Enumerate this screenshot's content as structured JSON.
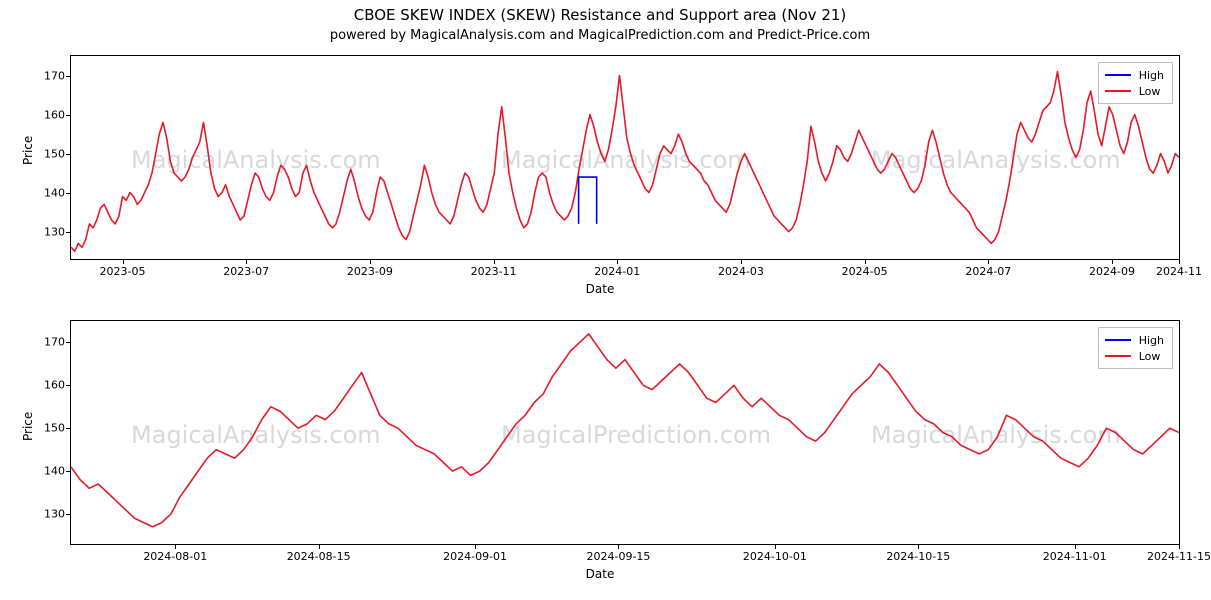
{
  "title": "CBOE SKEW INDEX (SKEW) Resistance and Support area (Nov 21)",
  "subtitle": "powered by MagicalAnalysis.com and MagicalPrediction.com and Predict-Price.com",
  "watermark_texts": [
    "MagicalAnalysis.com",
    "MagicalPrediction.com"
  ],
  "legend": {
    "items": [
      {
        "label": "High",
        "color": "#0000ff"
      },
      {
        "label": "Low",
        "color": "#e6192a"
      }
    ],
    "border_color": "#bfbfbf",
    "background": "#ffffff",
    "fontsize": 11
  },
  "style": {
    "axis_color": "#000000",
    "background": "#ffffff",
    "line_width": 1.6,
    "title_fontsize": 15,
    "subtitle_fontsize": 13,
    "tick_fontsize": 11,
    "label_fontsize": 12,
    "watermark_color": "#d9d9d9",
    "watermark_fontsize": 24
  },
  "top_chart": {
    "type": "line",
    "ylabel": "Price",
    "xlabel": "Date",
    "ylim": [
      123,
      175
    ],
    "yticks": [
      130,
      140,
      150,
      160,
      170
    ],
    "xlim": [
      0,
      430
    ],
    "xticks": [
      {
        "pos": 20,
        "label": "2023-05"
      },
      {
        "pos": 68,
        "label": "2023-07"
      },
      {
        "pos": 116,
        "label": "2023-09"
      },
      {
        "pos": 164,
        "label": "2023-11"
      },
      {
        "pos": 212,
        "label": "2024-01"
      },
      {
        "pos": 260,
        "label": "2024-03"
      },
      {
        "pos": 308,
        "label": "2024-05"
      },
      {
        "pos": 356,
        "label": "2024-07"
      },
      {
        "pos": 404,
        "label": "2024-09"
      },
      {
        "pos": 430,
        "label": "2024-11"
      }
    ],
    "series": [
      {
        "name": "Low",
        "color": "#e6192a",
        "y": [
          126,
          125,
          127,
          126,
          128,
          132,
          131,
          133,
          136,
          137,
          135,
          133,
          132,
          134,
          139,
          138,
          140,
          139,
          137,
          138,
          140,
          142,
          145,
          150,
          155,
          158,
          154,
          148,
          145,
          144,
          143,
          144,
          146,
          149,
          151,
          153,
          158,
          152,
          145,
          141,
          139,
          140,
          142,
          139,
          137,
          135,
          133,
          134,
          138,
          142,
          145,
          144,
          141,
          139,
          138,
          140,
          144,
          147,
          146,
          144,
          141,
          139,
          140,
          145,
          147,
          143,
          140,
          138,
          136,
          134,
          132,
          131,
          132,
          135,
          139,
          143,
          146,
          143,
          139,
          136,
          134,
          133,
          135,
          140,
          144,
          143,
          140,
          137,
          134,
          131,
          129,
          128,
          130,
          134,
          138,
          142,
          147,
          144,
          140,
          137,
          135,
          134,
          133,
          132,
          134,
          138,
          142,
          145,
          144,
          141,
          138,
          136,
          135,
          137,
          141,
          145,
          155,
          162,
          154,
          145,
          140,
          136,
          133,
          131,
          132,
          135,
          140,
          144,
          145,
          144,
          140,
          137,
          135,
          134,
          133,
          134,
          136,
          140,
          146,
          151,
          156,
          160,
          157,
          153,
          150,
          148,
          151,
          156,
          162,
          170,
          162,
          154,
          150,
          147,
          145,
          143,
          141,
          140,
          142,
          146,
          150,
          152,
          151,
          150,
          152,
          155,
          153,
          150,
          148,
          147,
          146,
          145,
          143,
          142,
          140,
          138,
          137,
          136,
          135,
          137,
          141,
          145,
          148,
          150,
          148,
          146,
          144,
          142,
          140,
          138,
          136,
          134,
          133,
          132,
          131,
          130,
          131,
          133,
          137,
          142,
          148,
          157,
          153,
          148,
          145,
          143,
          145,
          148,
          152,
          151,
          149,
          148,
          150,
          153,
          156,
          154,
          152,
          150,
          148,
          146,
          145,
          146,
          148,
          150,
          149,
          147,
          145,
          143,
          141,
          140,
          141,
          143,
          147,
          153,
          156,
          153,
          149,
          145,
          142,
          140,
          139,
          138,
          137,
          136,
          135,
          133,
          131,
          130,
          129,
          128,
          127,
          128,
          130,
          134,
          138,
          143,
          149,
          155,
          158,
          156,
          154,
          153,
          155,
          158,
          161,
          162,
          163,
          166,
          171,
          165,
          158,
          154,
          151,
          149,
          151,
          156,
          163,
          166,
          161,
          155,
          152,
          157,
          162,
          160,
          156,
          152,
          150,
          153,
          158,
          160,
          157,
          153,
          149,
          146,
          145,
          147,
          150,
          148,
          145,
          147,
          150,
          149
        ]
      },
      {
        "name": "High",
        "color": "#0000ff",
        "segment": {
          "x0": 197,
          "x1": 204,
          "y": 144
        }
      }
    ]
  },
  "bottom_chart": {
    "type": "line",
    "ylabel": "Price",
    "xlabel": "Date",
    "ylim": [
      123,
      175
    ],
    "yticks": [
      130,
      140,
      150,
      160,
      170
    ],
    "xlim": [
      0,
      85
    ],
    "xticks": [
      {
        "pos": 8,
        "label": "2024-08-01"
      },
      {
        "pos": 19,
        "label": "2024-08-15"
      },
      {
        "pos": 31,
        "label": "2024-09-01"
      },
      {
        "pos": 42,
        "label": "2024-09-15"
      },
      {
        "pos": 54,
        "label": "2024-10-01"
      },
      {
        "pos": 65,
        "label": "2024-10-15"
      },
      {
        "pos": 77,
        "label": "2024-11-01"
      },
      {
        "pos": 85,
        "label": "2024-11-15"
      }
    ],
    "series": [
      {
        "name": "Low",
        "color": "#e6192a",
        "y": [
          141,
          138,
          136,
          137,
          135,
          133,
          131,
          129,
          128,
          127,
          128,
          130,
          134,
          137,
          140,
          143,
          145,
          144,
          143,
          145,
          148,
          152,
          155,
          154,
          152,
          150,
          151,
          153,
          152,
          154,
          157,
          160,
          163,
          158,
          153,
          151,
          150,
          148,
          146,
          145,
          144,
          142,
          140,
          141,
          139,
          140,
          142,
          145,
          148,
          151,
          153,
          156,
          158,
          162,
          165,
          168,
          170,
          172,
          169,
          166,
          164,
          166,
          163,
          160,
          159,
          161,
          163,
          165,
          163,
          160,
          157,
          156,
          158,
          160,
          157,
          155,
          157,
          155,
          153,
          152,
          150,
          148,
          147,
          149,
          152,
          155,
          158,
          160,
          162,
          165,
          163,
          160,
          157,
          154,
          152,
          151,
          149,
          148,
          146,
          145,
          144,
          145,
          148,
          153,
          152,
          150,
          148,
          147,
          145,
          143,
          142,
          141,
          143,
          146,
          150,
          149,
          147,
          145,
          144,
          146,
          148,
          150,
          149
        ]
      }
    ]
  }
}
